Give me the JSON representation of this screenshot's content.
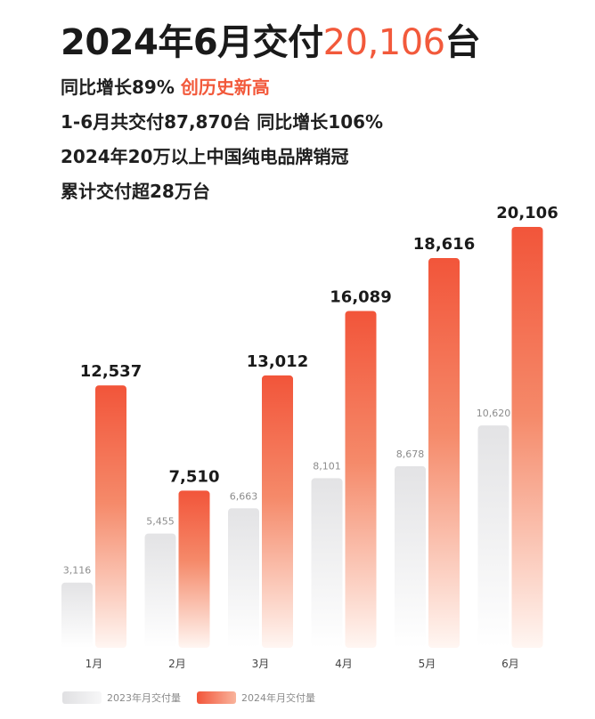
{
  "header": {
    "title_prefix": "2024年6月交付",
    "title_value": "20,106",
    "title_suffix": "台",
    "line1_main": "同比增长89% ",
    "line1_accent": "创历史新高",
    "line2": "1-6月共交付87,870台 同比增长106%",
    "line3": "2024年20万以上中国纯电品牌销冠",
    "line4": "累计交付超28万台"
  },
  "colors": {
    "accent": "#f2593b",
    "bar_2023_top": "#e4e4e6",
    "bar_2024_top": "#f2593b"
  },
  "chart_data": {
    "type": "bar",
    "categories": [
      "1月",
      "2月",
      "3月",
      "4月",
      "5月",
      "6月"
    ],
    "series": [
      {
        "name": "2023年月交付量",
        "values": [
          3116,
          5455,
          6663,
          8101,
          8678,
          10620
        ],
        "labels": [
          "3,116",
          "5,455",
          "6,663",
          "8,101",
          "8,678",
          "10,620"
        ]
      },
      {
        "name": "2024年月交付量",
        "values": [
          12537,
          7510,
          13012,
          16089,
          18616,
          20106
        ],
        "labels": [
          "12,537",
          "7,510",
          "13,012",
          "16,089",
          "18,616",
          "20,106"
        ]
      }
    ],
    "ylim": [
      0,
      20106
    ],
    "grid": false,
    "legend": "bottom-left"
  }
}
